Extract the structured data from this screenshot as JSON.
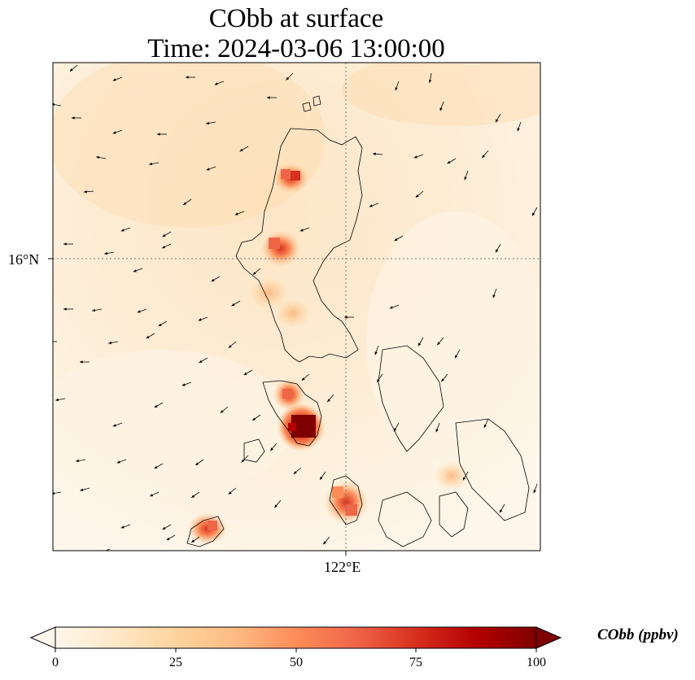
{
  "title": {
    "line1": "CObb at surface",
    "line2": "Time: 2024-03-06 13:00:00"
  },
  "map": {
    "lat_tick": "16°N",
    "lon_tick": "122°E",
    "gridline_style": "dotted",
    "coastline_color": "#000000"
  },
  "colorbar": {
    "label": "CObb (ppbv)",
    "ticks": [
      "0",
      "25",
      "50",
      "75",
      "100"
    ],
    "min": 0,
    "max": 100,
    "colormap": "OrRd",
    "extend": "both",
    "stops": [
      "#fff7ec",
      "#fee8c8",
      "#fdd49e",
      "#fdbb84",
      "#fc8d59",
      "#ef6548",
      "#d7301f",
      "#b30000",
      "#7f0000"
    ]
  }
}
